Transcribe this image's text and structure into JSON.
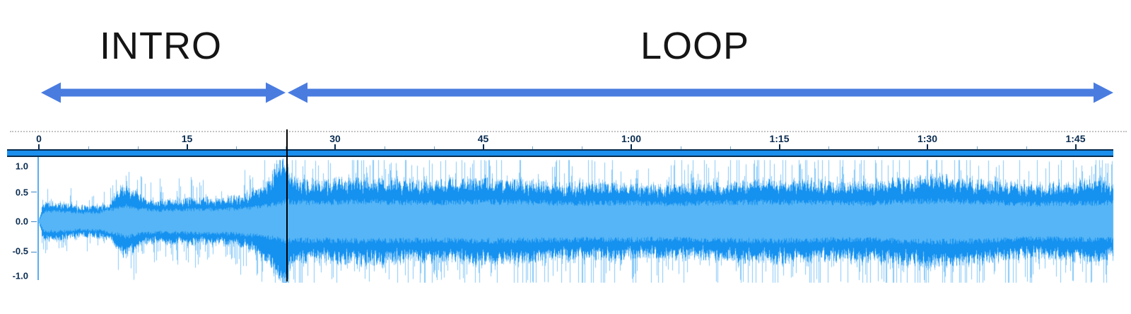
{
  "annotations": {
    "intro_label": "INTRO",
    "loop_label": "LOOP"
  },
  "arrows": {
    "color": "#4a7ce0",
    "intro_span_seconds": [
      0,
      25.1
    ],
    "loop_span_seconds": [
      25.1,
      108.8
    ]
  },
  "ruler": {
    "tick_labels": [
      {
        "t": 0,
        "label": "0"
      },
      {
        "t": 15,
        "label": "15"
      },
      {
        "t": 30,
        "label": "30"
      },
      {
        "t": 45,
        "label": "45"
      },
      {
        "t": 60,
        "label": "1:00"
      },
      {
        "t": 75,
        "label": "1:15"
      },
      {
        "t": 90,
        "label": "1:30"
      },
      {
        "t": 105,
        "label": "1:45"
      }
    ],
    "minor_tick_every_seconds": 5,
    "label_color": "#0a2c50"
  },
  "amplitude_scale": {
    "labels": [
      {
        "value": 1,
        "label": "1.0"
      },
      {
        "value": 0.5,
        "label": "0.5"
      },
      {
        "value": 0,
        "label": "0.0"
      },
      {
        "value": -0.5,
        "label": "-0.5"
      },
      {
        "value": -1,
        "label": "-1.0"
      }
    ]
  },
  "waveform": {
    "duration_seconds": 108.8,
    "colors": {
      "peak": "#1591f0",
      "rms": "#55b5f6",
      "tip": "#87c9f8",
      "bar_fill": "#1a8fee",
      "bar_border": "#072c4e"
    },
    "fill_envelope": [
      [
        0,
        0.03
      ],
      [
        0.35,
        0.26
      ],
      [
        1,
        0.29
      ],
      [
        2,
        0.27
      ],
      [
        3,
        0.25
      ],
      [
        4,
        0.23
      ],
      [
        5,
        0.23
      ],
      [
        6,
        0.24
      ],
      [
        7,
        0.26
      ],
      [
        7.7,
        0.4
      ],
      [
        8.5,
        0.52
      ],
      [
        9.3,
        0.49
      ],
      [
        10,
        0.42
      ],
      [
        10.8,
        0.33
      ],
      [
        12,
        0.31
      ],
      [
        13,
        0.34
      ],
      [
        14,
        0.32
      ],
      [
        15,
        0.35
      ],
      [
        16,
        0.33
      ],
      [
        17,
        0.36
      ],
      [
        18,
        0.33
      ],
      [
        19,
        0.35
      ],
      [
        20,
        0.37
      ],
      [
        21,
        0.41
      ],
      [
        21.8,
        0.47
      ],
      [
        22.6,
        0.55
      ],
      [
        23.4,
        0.65
      ],
      [
        24.2,
        0.85
      ],
      [
        25,
        1.0
      ],
      [
        25.4,
        0.72
      ],
      [
        26,
        0.62
      ],
      [
        28,
        0.58
      ],
      [
        30,
        0.61
      ],
      [
        34,
        0.63
      ],
      [
        38,
        0.58
      ],
      [
        42,
        0.6
      ],
      [
        46,
        0.63
      ],
      [
        50,
        0.58
      ],
      [
        54,
        0.55
      ],
      [
        58,
        0.57
      ],
      [
        62,
        0.52
      ],
      [
        66,
        0.55
      ],
      [
        70,
        0.58
      ],
      [
        74,
        0.61
      ],
      [
        78,
        0.58
      ],
      [
        82,
        0.56
      ],
      [
        86,
        0.61
      ],
      [
        90,
        0.66
      ],
      [
        94,
        0.63
      ],
      [
        98,
        0.56
      ],
      [
        101,
        0.53
      ],
      [
        104,
        0.56
      ],
      [
        107,
        0.6
      ],
      [
        108.8,
        0.56
      ]
    ],
    "rms_envelope": [
      [
        0,
        0.02
      ],
      [
        0.5,
        0.16
      ],
      [
        2,
        0.17
      ],
      [
        4,
        0.14
      ],
      [
        6,
        0.15
      ],
      [
        8,
        0.22
      ],
      [
        8.8,
        0.26
      ],
      [
        10,
        0.21
      ],
      [
        12,
        0.18
      ],
      [
        14,
        0.19
      ],
      [
        16,
        0.2
      ],
      [
        18,
        0.2
      ],
      [
        20,
        0.21
      ],
      [
        22,
        0.24
      ],
      [
        24,
        0.29
      ],
      [
        25,
        0.33
      ],
      [
        28,
        0.31
      ],
      [
        32,
        0.33
      ],
      [
        36,
        0.32
      ],
      [
        40,
        0.31
      ],
      [
        44,
        0.33
      ],
      [
        48,
        0.32
      ],
      [
        52,
        0.31
      ],
      [
        56,
        0.3
      ],
      [
        60,
        0.31
      ],
      [
        64,
        0.29
      ],
      [
        68,
        0.31
      ],
      [
        72,
        0.32
      ],
      [
        76,
        0.32
      ],
      [
        80,
        0.31
      ],
      [
        84,
        0.3
      ],
      [
        88,
        0.33
      ],
      [
        92,
        0.34
      ],
      [
        96,
        0.32
      ],
      [
        100,
        0.29
      ],
      [
        104,
        0.3
      ],
      [
        108.8,
        0.31
      ]
    ],
    "spike_probability": 0.16,
    "seed": 7
  },
  "cursor": {
    "time_seconds": 25.1,
    "color": "#000000"
  }
}
